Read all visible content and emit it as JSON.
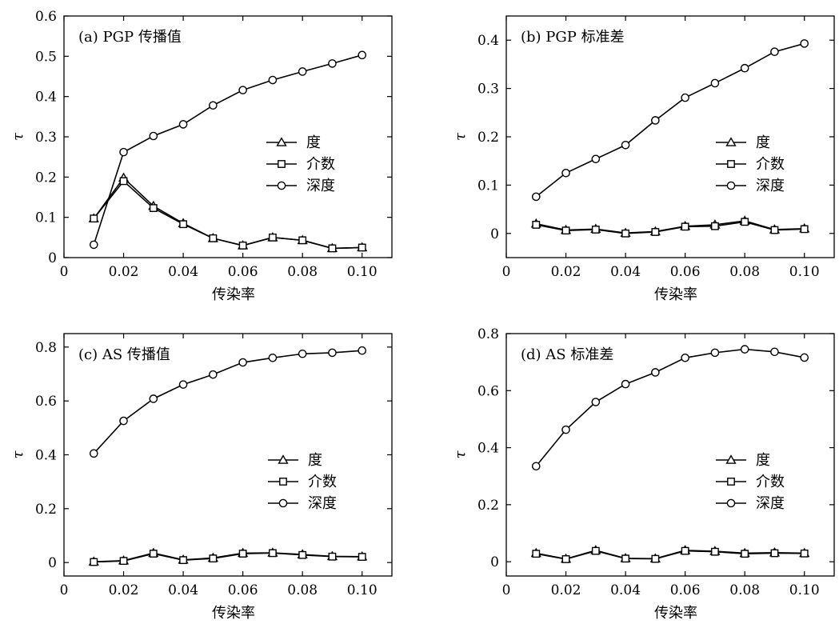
{
  "chart_data": [
    {
      "id": "a",
      "type": "line",
      "title": "(a)  PGP 传播值",
      "xlabel": "传染率",
      "ylabel": "τ",
      "xlim": [
        0,
        0.11
      ],
      "ylim": [
        0,
        0.6
      ],
      "xticks": [
        0,
        0.02,
        0.04,
        0.06,
        0.08,
        0.1
      ],
      "xtick_labels": [
        "0",
        "0.02",
        "0.04",
        "0.06",
        "0.08",
        "0.10"
      ],
      "yticks": [
        0,
        0.1,
        0.2,
        0.3,
        0.4,
        0.5,
        0.6
      ],
      "ytick_labels": [
        "0",
        "0.1",
        "0.2",
        "0.3",
        "0.4",
        "0.5",
        "0.6"
      ],
      "x": [
        0.01,
        0.02,
        0.03,
        0.04,
        0.05,
        0.06,
        0.07,
        0.08,
        0.09,
        0.1
      ],
      "series": [
        {
          "name": "度",
          "marker": "triangle",
          "values": [
            0.097,
            0.198,
            0.128,
            0.085,
            0.048,
            0.03,
            0.05,
            0.043,
            0.023,
            0.025
          ]
        },
        {
          "name": "介数",
          "marker": "square",
          "values": [
            0.097,
            0.19,
            0.123,
            0.083,
            0.048,
            0.03,
            0.05,
            0.043,
            0.023,
            0.025
          ]
        },
        {
          "name": "深度",
          "marker": "circle",
          "values": [
            0.032,
            0.262,
            0.302,
            0.331,
            0.378,
            0.416,
            0.441,
            0.462,
            0.482,
            0.503
          ]
        }
      ],
      "legend_position": "center-right",
      "grid": false
    },
    {
      "id": "b",
      "type": "line",
      "title": "(b)  PGP 标准差",
      "xlabel": "传染率",
      "ylabel": "τ",
      "xlim": [
        0,
        0.11
      ],
      "ylim": [
        -0.05,
        0.45
      ],
      "xticks": [
        0,
        0.02,
        0.04,
        0.06,
        0.08,
        0.1
      ],
      "xtick_labels": [
        "0",
        "0.02",
        "0.04",
        "0.06",
        "0.08",
        "0.10"
      ],
      "yticks": [
        0,
        0.1,
        0.2,
        0.3,
        0.4
      ],
      "ytick_labels": [
        "0",
        "0.1",
        "0.2",
        "0.3",
        "0.4"
      ],
      "x": [
        0.01,
        0.02,
        0.03,
        0.04,
        0.05,
        0.06,
        0.07,
        0.08,
        0.09,
        0.1
      ],
      "series": [
        {
          "name": "度",
          "marker": "triangle",
          "values": [
            0.02,
            0.007,
            0.009,
            0.001,
            0.004,
            0.015,
            0.018,
            0.026,
            0.008,
            0.01
          ]
        },
        {
          "name": "介数",
          "marker": "square",
          "values": [
            0.018,
            0.006,
            0.008,
            0.0,
            0.003,
            0.014,
            0.015,
            0.024,
            0.007,
            0.009
          ]
        },
        {
          "name": "深度",
          "marker": "circle",
          "values": [
            0.076,
            0.125,
            0.154,
            0.183,
            0.234,
            0.281,
            0.311,
            0.342,
            0.376,
            0.393
          ]
        }
      ],
      "legend_position": "center-right",
      "grid": false
    },
    {
      "id": "c",
      "type": "line",
      "title": "(c)  AS 传播值",
      "xlabel": "传染率",
      "ylabel": "τ",
      "xlim": [
        0,
        0.11
      ],
      "ylim": [
        -0.05,
        0.85
      ],
      "xticks": [
        0,
        0.02,
        0.04,
        0.06,
        0.08,
        0.1
      ],
      "xtick_labels": [
        "0",
        "0.02",
        "0.04",
        "0.06",
        "0.08",
        "0.10"
      ],
      "yticks": [
        0,
        0.2,
        0.4,
        0.6,
        0.8
      ],
      "ytick_labels": [
        "0",
        "0.2",
        "0.4",
        "0.6",
        "0.8"
      ],
      "x": [
        0.01,
        0.02,
        0.03,
        0.04,
        0.05,
        0.06,
        0.07,
        0.08,
        0.09,
        0.1
      ],
      "series": [
        {
          "name": "度",
          "marker": "triangle",
          "values": [
            0.003,
            0.007,
            0.035,
            0.01,
            0.017,
            0.035,
            0.036,
            0.03,
            0.023,
            0.022
          ]
        },
        {
          "name": "介数",
          "marker": "square",
          "values": [
            0.002,
            0.006,
            0.033,
            0.009,
            0.015,
            0.033,
            0.035,
            0.028,
            0.022,
            0.021
          ]
        },
        {
          "name": "深度",
          "marker": "circle",
          "values": [
            0.405,
            0.526,
            0.608,
            0.661,
            0.698,
            0.743,
            0.76,
            0.775,
            0.779,
            0.787
          ]
        }
      ],
      "legend_position": "center-right",
      "grid": false
    },
    {
      "id": "d",
      "type": "line",
      "title": "(d)  AS 标准差",
      "xlabel": "传染率",
      "ylabel": "τ",
      "xlim": [
        0,
        0.11
      ],
      "ylim": [
        -0.05,
        0.8
      ],
      "xticks": [
        0,
        0.02,
        0.04,
        0.06,
        0.08,
        0.1
      ],
      "xtick_labels": [
        "0",
        "0.02",
        "0.04",
        "0.06",
        "0.08",
        "0.10"
      ],
      "yticks": [
        0,
        0.2,
        0.4,
        0.6,
        0.8
      ],
      "ytick_labels": [
        "0",
        "0.2",
        "0.4",
        "0.6",
        "0.8"
      ],
      "x": [
        0.01,
        0.02,
        0.03,
        0.04,
        0.05,
        0.06,
        0.07,
        0.08,
        0.09,
        0.1
      ],
      "series": [
        {
          "name": "度",
          "marker": "triangle",
          "values": [
            0.03,
            0.01,
            0.04,
            0.012,
            0.011,
            0.04,
            0.037,
            0.03,
            0.032,
            0.03
          ]
        },
        {
          "name": "介数",
          "marker": "square",
          "values": [
            0.028,
            0.009,
            0.038,
            0.011,
            0.01,
            0.038,
            0.035,
            0.028,
            0.03,
            0.029
          ]
        },
        {
          "name": "深度",
          "marker": "circle",
          "values": [
            0.335,
            0.463,
            0.56,
            0.623,
            0.664,
            0.715,
            0.733,
            0.745,
            0.736,
            0.716
          ]
        }
      ],
      "legend_position": "center-right",
      "grid": false
    }
  ]
}
